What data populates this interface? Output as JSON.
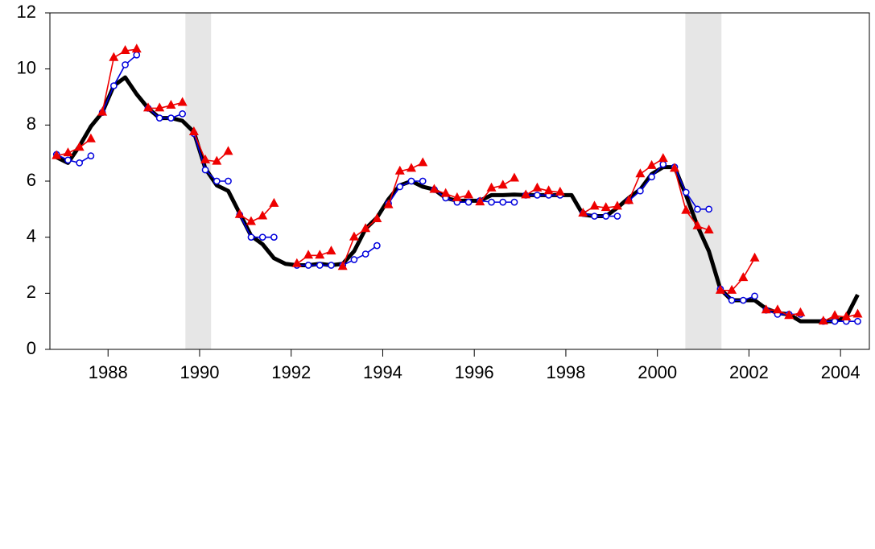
{
  "chart_data": {
    "type": "line",
    "xlim": [
      1987.23,
      2005.13
    ],
    "ylim": [
      0,
      12
    ],
    "yticks": [
      0,
      2,
      4,
      6,
      8,
      10,
      12
    ],
    "xticks": [
      {
        "value": 1988.5,
        "label": "1988"
      },
      {
        "value": 1990.5,
        "label": "1990"
      },
      {
        "value": 1992.5,
        "label": "1992"
      },
      {
        "value": 1994.5,
        "label": "1994"
      },
      {
        "value": 1996.5,
        "label": "1996"
      },
      {
        "value": 1998.5,
        "label": "1998"
      },
      {
        "value": 2000.5,
        "label": "2000"
      },
      {
        "value": 2002.5,
        "label": "2002"
      },
      {
        "value": 2004.5,
        "label": "2004"
      }
    ],
    "shading": {
      "color": "#e6e6e6",
      "ranges": [
        [
          1990.19,
          1990.75
        ],
        [
          2001.11,
          2001.9
        ]
      ]
    },
    "series": [
      {
        "color": "#000000",
        "marker": "none",
        "x": [
          1987.375,
          1987.625,
          1987.875,
          1988.125,
          1988.375,
          1988.625,
          1988.875,
          1989.125,
          1989.375,
          1989.625,
          1989.875,
          1990.125,
          1990.375,
          1990.625,
          1990.875,
          1991.125,
          1991.375,
          1991.625,
          1991.875,
          1992.125,
          1992.375,
          1992.625,
          1992.875,
          1993.125,
          1993.375,
          1993.625,
          1993.875,
          1994.125,
          1994.375,
          1994.625,
          1994.875,
          1995.125,
          1995.375,
          1995.625,
          1995.875,
          1996.125,
          1996.375,
          1996.625,
          1996.875,
          1997.125,
          1997.375,
          1997.625,
          1997.875,
          1998.125,
          1998.375,
          1998.625,
          1998.875,
          1999.125,
          1999.375,
          1999.625,
          1999.875,
          2000.125,
          2000.375,
          2000.625,
          2000.875,
          2001.125,
          2001.375,
          2001.625,
          2001.875,
          2002.125,
          2002.375,
          2002.625,
          2002.875,
          2003.125,
          2003.375,
          2003.625,
          2003.875,
          2004.125,
          2004.375,
          2004.625,
          2004.875
        ],
        "values": [
          6.85,
          6.65,
          7.25,
          7.95,
          8.45,
          9.4,
          9.7,
          9.1,
          8.6,
          8.25,
          8.25,
          8.15,
          7.75,
          6.45,
          5.85,
          5.65,
          4.85,
          4.05,
          3.75,
          3.25,
          3.05,
          3.0,
          3.0,
          3.05,
          3.0,
          3.05,
          3.5,
          4.3,
          4.7,
          5.35,
          5.85,
          6.0,
          5.8,
          5.7,
          5.4,
          5.3,
          5.3,
          5.3,
          5.5,
          5.5,
          5.52,
          5.5,
          5.5,
          5.5,
          5.5,
          5.5,
          4.8,
          4.75,
          4.75,
          5.05,
          5.4,
          5.7,
          6.25,
          6.5,
          6.5,
          5.5,
          4.4,
          3.5,
          2.15,
          1.75,
          1.75,
          1.75,
          1.45,
          1.3,
          1.25,
          1.0,
          1.0,
          1.0,
          1.0,
          1.15,
          1.95
        ]
      },
      {
        "color": "#0000dd",
        "marker": "circle",
        "segments": [
          {
            "x": [
              1987.375,
              1987.625,
              1987.875,
              1988.125
            ],
            "values": [
              6.95,
              6.75,
              6.65,
              6.9
            ]
          },
          {
            "x": [
              1988.375,
              1988.625,
              1988.875,
              1989.125
            ],
            "values": [
              8.45,
              9.4,
              10.15,
              10.5
            ]
          },
          {
            "x": [
              1989.375,
              1989.625,
              1989.875,
              1990.125
            ],
            "values": [
              8.6,
              8.25,
              8.25,
              8.4
            ]
          },
          {
            "x": [
              1990.375,
              1990.625,
              1990.875,
              1991.125
            ],
            "values": [
              7.7,
              6.4,
              6.0,
              6.0
            ]
          },
          {
            "x": [
              1991.375,
              1991.625,
              1991.875,
              1992.125
            ],
            "values": [
              4.8,
              4.0,
              4.0,
              4.0
            ]
          },
          {
            "x": [
              1992.625,
              1992.875,
              1993.125,
              1993.375
            ],
            "values": [
              3.0,
              3.0,
              3.0,
              3.0
            ]
          },
          {
            "x": [
              1993.625,
              1993.875,
              1994.125,
              1994.375
            ],
            "values": [
              3.0,
              3.2,
              3.4,
              3.7
            ]
          },
          {
            "x": [
              1994.625,
              1994.875,
              1995.125,
              1995.375
            ],
            "values": [
              5.2,
              5.8,
              6.0,
              6.0
            ]
          },
          {
            "x": [
              1995.625,
              1995.875,
              1996.125,
              1996.375
            ],
            "values": [
              5.7,
              5.4,
              5.25,
              5.25
            ]
          },
          {
            "x": [
              1996.625,
              1996.875,
              1997.125,
              1997.375
            ],
            "values": [
              5.3,
              5.25,
              5.25,
              5.25
            ]
          },
          {
            "x": [
              1997.625,
              1997.875,
              1998.125,
              1998.375
            ],
            "values": [
              5.5,
              5.5,
              5.5,
              5.5
            ]
          },
          {
            "x": [
              1998.875,
              1999.125,
              1999.375,
              1999.625
            ],
            "values": [
              4.85,
              4.75,
              4.75,
              4.75
            ]
          },
          {
            "x": [
              1999.875,
              2000.125,
              2000.375,
              2000.625
            ],
            "values": [
              5.3,
              5.65,
              6.15,
              6.6
            ]
          },
          {
            "x": [
              2000.875,
              2001.125,
              2001.375,
              2001.625
            ],
            "values": [
              6.5,
              5.6,
              5.0,
              5.0
            ]
          },
          {
            "x": [
              2001.875,
              2002.125,
              2002.375,
              2002.625
            ],
            "values": [
              2.15,
              1.75,
              1.75,
              1.9
            ]
          },
          {
            "x": [
              2002.875,
              2003.125,
              2003.375,
              2003.625
            ],
            "values": [
              1.4,
              1.25,
              1.25,
              1.25
            ]
          },
          {
            "x": [
              2004.125,
              2004.375,
              2004.625,
              2004.875
            ],
            "values": [
              1.0,
              1.0,
              1.0,
              1.0
            ]
          }
        ]
      },
      {
        "color": "#ee0000",
        "marker": "triangle",
        "segments": [
          {
            "x": [
              1987.375,
              1987.625,
              1987.875,
              1988.125
            ],
            "values": [
              6.9,
              7.0,
              7.2,
              7.5
            ]
          },
          {
            "x": [
              1988.375,
              1988.625,
              1988.875,
              1989.125
            ],
            "values": [
              8.45,
              10.4,
              10.65,
              10.7
            ]
          },
          {
            "x": [
              1989.375,
              1989.625,
              1989.875,
              1990.125
            ],
            "values": [
              8.6,
              8.6,
              8.7,
              8.8
            ]
          },
          {
            "x": [
              1990.375,
              1990.625,
              1990.875,
              1991.125
            ],
            "values": [
              7.75,
              6.75,
              6.7,
              7.05
            ]
          },
          {
            "x": [
              1991.375,
              1991.625,
              1991.875,
              1992.125
            ],
            "values": [
              4.8,
              4.55,
              4.75,
              5.2
            ]
          },
          {
            "x": [
              1992.625,
              1992.875,
              1993.125,
              1993.375
            ],
            "values": [
              3.05,
              3.35,
              3.35,
              3.5
            ]
          },
          {
            "x": [
              1993.625,
              1993.875,
              1994.125,
              1994.375
            ],
            "values": [
              2.95,
              4.0,
              4.3,
              4.65
            ]
          },
          {
            "x": [
              1994.625,
              1994.875,
              1995.125,
              1995.375
            ],
            "values": [
              5.15,
              6.35,
              6.45,
              6.65
            ]
          },
          {
            "x": [
              1995.625,
              1995.875,
              1996.125,
              1996.375
            ],
            "values": [
              5.7,
              5.55,
              5.4,
              5.5
            ]
          },
          {
            "x": [
              1996.625,
              1996.875,
              1997.125,
              1997.375
            ],
            "values": [
              5.25,
              5.75,
              5.85,
              6.1
            ]
          },
          {
            "x": [
              1997.625,
              1997.875,
              1998.125,
              1998.375
            ],
            "values": [
              5.5,
              5.75,
              5.65,
              5.6
            ]
          },
          {
            "x": [
              1998.875,
              1999.125,
              1999.375,
              1999.625
            ],
            "values": [
              4.85,
              5.1,
              5.05,
              5.1
            ]
          },
          {
            "x": [
              1999.875,
              2000.125,
              2000.375,
              2000.625
            ],
            "values": [
              5.3,
              6.25,
              6.55,
              6.8
            ]
          },
          {
            "x": [
              2000.875,
              2001.125,
              2001.375,
              2001.625
            ],
            "values": [
              6.45,
              4.95,
              4.4,
              4.25
            ]
          },
          {
            "x": [
              2001.875,
              2002.125,
              2002.375,
              2002.625
            ],
            "values": [
              2.1,
              2.1,
              2.55,
              3.25
            ]
          },
          {
            "x": [
              2002.875,
              2003.125,
              2003.375,
              2003.625
            ],
            "values": [
              1.4,
              1.4,
              1.2,
              1.3
            ]
          },
          {
            "x": [
              2004.125,
              2004.375,
              2004.625,
              2004.875
            ],
            "values": [
              1.0,
              1.2,
              1.15,
              1.25
            ]
          }
        ]
      }
    ]
  }
}
